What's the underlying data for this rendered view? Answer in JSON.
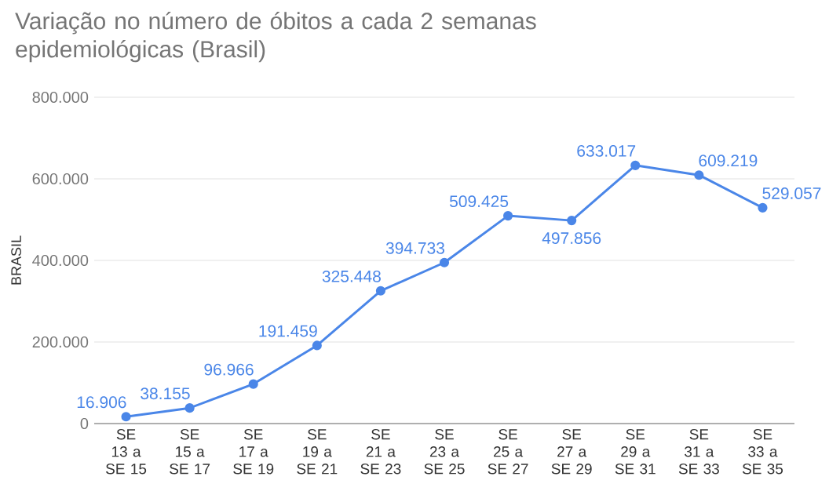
{
  "chart_data": {
    "type": "line",
    "title": "Variação no número de óbitos a cada 2 semanas epidemiológicas (Brasil)",
    "ylabel": "BRASIL",
    "categories": [
      "SE 13 a SE 15",
      "SE 15 a SE 17",
      "SE 17 a SE 19",
      "SE 19 a SE 21",
      "SE 21 a SE 23",
      "SE 23 a SE 25",
      "SE 25 a SE 27",
      "SE 27 a SE 29",
      "SE 29 a SE 31",
      "SE 31 a SE 33",
      "SE 33 a SE 35"
    ],
    "series": [
      {
        "color": "#4a86e8",
        "values": [
          16906,
          38155,
          96966,
          191459,
          325448,
          394733,
          509425,
          497856,
          633017,
          609219,
          529057
        ],
        "value_labels": [
          "16.906",
          "38.155",
          "96.966",
          "191.459",
          "325.448",
          "394.733",
          "509.425",
          "497.856",
          "633.017",
          "609.219",
          "529.057"
        ]
      }
    ],
    "ylim": [
      0,
      800000
    ],
    "yticks": [
      {
        "value": 0,
        "label": "0"
      },
      {
        "value": 200000,
        "label": "200.000"
      },
      {
        "value": 400000,
        "label": "400.000"
      },
      {
        "value": 600000,
        "label": "600.000"
      },
      {
        "value": 800000,
        "label": "800.000"
      }
    ],
    "grid": "y",
    "marker": "circle",
    "line_style": "solid"
  }
}
